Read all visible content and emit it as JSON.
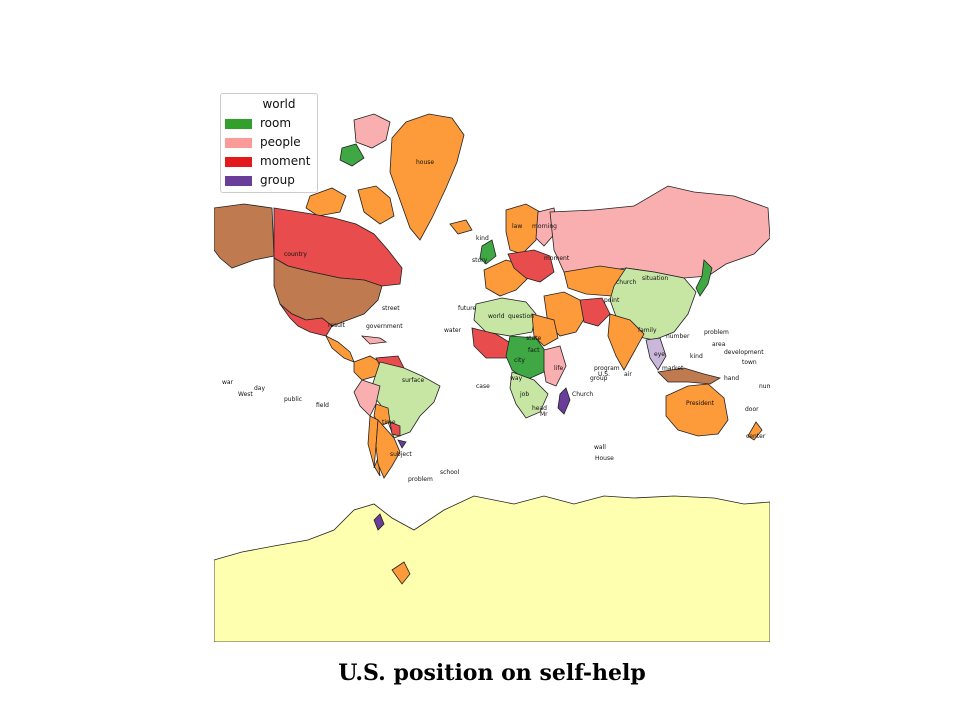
{
  "caption": "U.S. position on self-help",
  "legend": {
    "title": "world",
    "items": [
      {
        "label": "room",
        "color": "#33a02c"
      },
      {
        "label": "people",
        "color": "#fb9a99"
      },
      {
        "label": "moment",
        "color": "#e31a1c"
      },
      {
        "label": "group",
        "color": "#6a3d9a"
      }
    ]
  },
  "colors": {
    "orange": "#fd9a3a",
    "brown": "#c07a50",
    "red": "#e84c4c",
    "pink": "#f9aeb0",
    "green": "#3fa845",
    "lightgreen": "#c7e6a4",
    "yellow": "#ffffb0",
    "purple": "#6a3d9a",
    "lightpurple": "#cbb7da",
    "lightblue": "#b3d3ea",
    "outline": "#222222"
  },
  "map_labels": [
    "house",
    "country",
    "street",
    "result",
    "government",
    "surface",
    "state",
    "war",
    "day",
    "West",
    "public",
    "field",
    "time",
    "subject",
    "problem",
    "school",
    "case",
    "wall",
    "House",
    "President",
    "door",
    "center",
    "program",
    "U.S.",
    "Church",
    "situation",
    "problem",
    "area",
    "kind",
    "development",
    "town",
    "number",
    "hand",
    "world",
    "question",
    "water",
    "future",
    "kind",
    "story",
    "law",
    "morning",
    "moment",
    "church",
    "point",
    "number",
    "family",
    "eye",
    "market",
    "group",
    "air",
    "city",
    "life",
    "way",
    "head",
    "job",
    "fact",
    "Mr"
  ]
}
